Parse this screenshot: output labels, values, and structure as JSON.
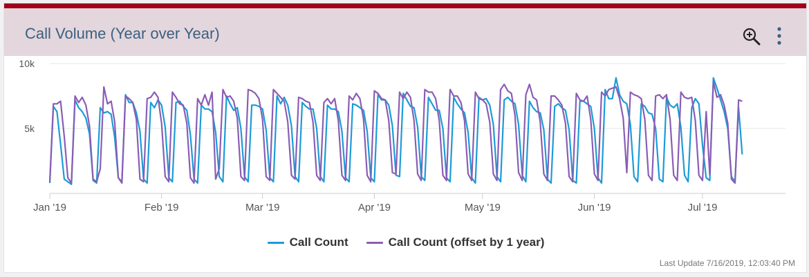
{
  "widget": {
    "title": "Call Volume (Year over Year)",
    "zoom_icon": "zoom-in-icon",
    "menu_icon": "kebab-menu-icon",
    "accent_bar_color": "#a0001c",
    "header_bg_color": "#e3d6dd",
    "last_update": "Last Update 7/16/2019, 12:03:40 PM"
  },
  "chart_data": {
    "type": "line",
    "xlabel": "",
    "ylabel": "",
    "x_range": [
      "2019-01-01",
      "2019-07-24"
    ],
    "ylim": [
      0,
      10000
    ],
    "yticks": [
      {
        "value": 5000,
        "label": "5k"
      },
      {
        "value": 10000,
        "label": "10k"
      }
    ],
    "xticks": [
      {
        "date": "2019-01-01",
        "label": "Jan '19"
      },
      {
        "date": "2019-02-01",
        "label": "Feb '19"
      },
      {
        "date": "2019-03-01",
        "label": "Mar '19"
      },
      {
        "date": "2019-04-01",
        "label": "Apr '19"
      },
      {
        "date": "2019-05-01",
        "label": "May '19"
      },
      {
        "date": "2019-06-01",
        "label": "Jun '19"
      },
      {
        "date": "2019-07-01",
        "label": "Jul '19"
      }
    ],
    "grid": true,
    "legend_position": "bottom",
    "series": [
      {
        "name": "Call Count",
        "color": "#1b9bd7",
        "start_date": "2019-01-01",
        "values": [
          800,
          6700,
          6300,
          3800,
          1100,
          900,
          700,
          7200,
          6600,
          6300,
          5800,
          4600,
          1000,
          800,
          6600,
          6200,
          6300,
          6100,
          4300,
          1200,
          900,
          7600,
          7000,
          7000,
          6200,
          4800,
          1100,
          800,
          7000,
          6600,
          7200,
          6800,
          5100,
          1200,
          900,
          7000,
          7100,
          6700,
          6400,
          4500,
          1100,
          800,
          6800,
          6500,
          6500,
          6300,
          4700,
          1300,
          900,
          7500,
          6900,
          6400,
          6600,
          5000,
          1300,
          900,
          6800,
          6800,
          6700,
          6500,
          4900,
          1200,
          900,
          7500,
          6900,
          7400,
          6800,
          5200,
          1300,
          900,
          7000,
          6700,
          6500,
          6500,
          5000,
          1300,
          900,
          6800,
          6500,
          6500,
          6300,
          4800,
          1200,
          900,
          6900,
          6800,
          6600,
          6400,
          4800,
          1200,
          900,
          7600,
          7200,
          7200,
          6800,
          5200,
          1400,
          1300,
          7700,
          7200,
          6700,
          6600,
          5100,
          1300,
          1000,
          7400,
          6900,
          6400,
          6400,
          5000,
          1200,
          900,
          7400,
          6900,
          6500,
          6200,
          4700,
          1200,
          800,
          7400,
          7200,
          7300,
          6800,
          5300,
          1300,
          900,
          7200,
          7400,
          7100,
          6900,
          5300,
          1400,
          900,
          7100,
          6600,
          6300,
          6200,
          4900,
          1100,
          800,
          6700,
          6900,
          6600,
          6400,
          4900,
          1000,
          800,
          7100,
          7100,
          6900,
          6700,
          5000,
          1200,
          800,
          8000,
          7300,
          7300,
          8900,
          7600,
          7100,
          6900,
          5300,
          1300,
          900,
          6900,
          6700,
          6200,
          6100,
          5000,
          1100,
          900,
          7400,
          6800,
          6600,
          6900,
          5100,
          1400,
          900,
          6600,
          7300,
          6900,
          3700,
          1200,
          1000,
          8900,
          8100,
          7200,
          6300,
          5000,
          1300,
          900,
          6600,
          3000
        ]
      },
      {
        "name": "Call Count (offset by 1 year)",
        "color": "#8a5db4",
        "start_date": "2019-01-01",
        "values": [
          900,
          6900,
          6900,
          7100,
          4400,
          1200,
          800,
          7500,
          7000,
          7400,
          6800,
          5200,
          1100,
          900,
          1900,
          8200,
          6900,
          7100,
          5500,
          1200,
          800,
          7500,
          7300,
          7000,
          5700,
          1100,
          900,
          7300,
          7400,
          7800,
          7400,
          5400,
          1300,
          900,
          7800,
          7400,
          6900,
          6800,
          5400,
          1200,
          800,
          7300,
          6800,
          7600,
          6800,
          7800,
          1100,
          1900,
          8000,
          7400,
          7500,
          7100,
          5800,
          1300,
          1000,
          8000,
          7900,
          7700,
          7300,
          5700,
          1300,
          1000,
          8000,
          7700,
          7400,
          7100,
          5500,
          1400,
          1100,
          7400,
          7300,
          7100,
          7000,
          5500,
          1400,
          1000,
          7000,
          7300,
          6900,
          7300,
          5600,
          1400,
          1000,
          7500,
          7200,
          7700,
          7300,
          5700,
          1400,
          900,
          7900,
          7700,
          7300,
          7200,
          5600,
          1600,
          1500,
          7800,
          7300,
          7800,
          7400,
          5600,
          1500,
          1000,
          8000,
          7800,
          7800,
          7300,
          5600,
          1400,
          1000,
          8000,
          7500,
          7500,
          7000,
          5600,
          1500,
          1000,
          7800,
          7300,
          7200,
          6900,
          5500,
          1500,
          1000,
          8000,
          8400,
          7900,
          7700,
          6000,
          1600,
          1000,
          7600,
          8400,
          7400,
          7200,
          5500,
          1500,
          1000,
          7500,
          7500,
          7200,
          6800,
          5400,
          1300,
          900,
          7700,
          7200,
          7100,
          7500,
          5700,
          1500,
          1000,
          7800,
          7500,
          8000,
          8100,
          8200,
          7300,
          5800,
          1600,
          7800,
          7600,
          7500,
          7300,
          5700,
          1400,
          1000,
          7500,
          7600,
          7300,
          7600,
          5700,
          1400,
          1000,
          7800,
          7400,
          7300,
          7400,
          5600,
          1400,
          1000,
          6300,
          1400,
          8600,
          7400,
          7600,
          6800,
          5400,
          1100,
          800,
          7200,
          7100
        ]
      }
    ]
  }
}
